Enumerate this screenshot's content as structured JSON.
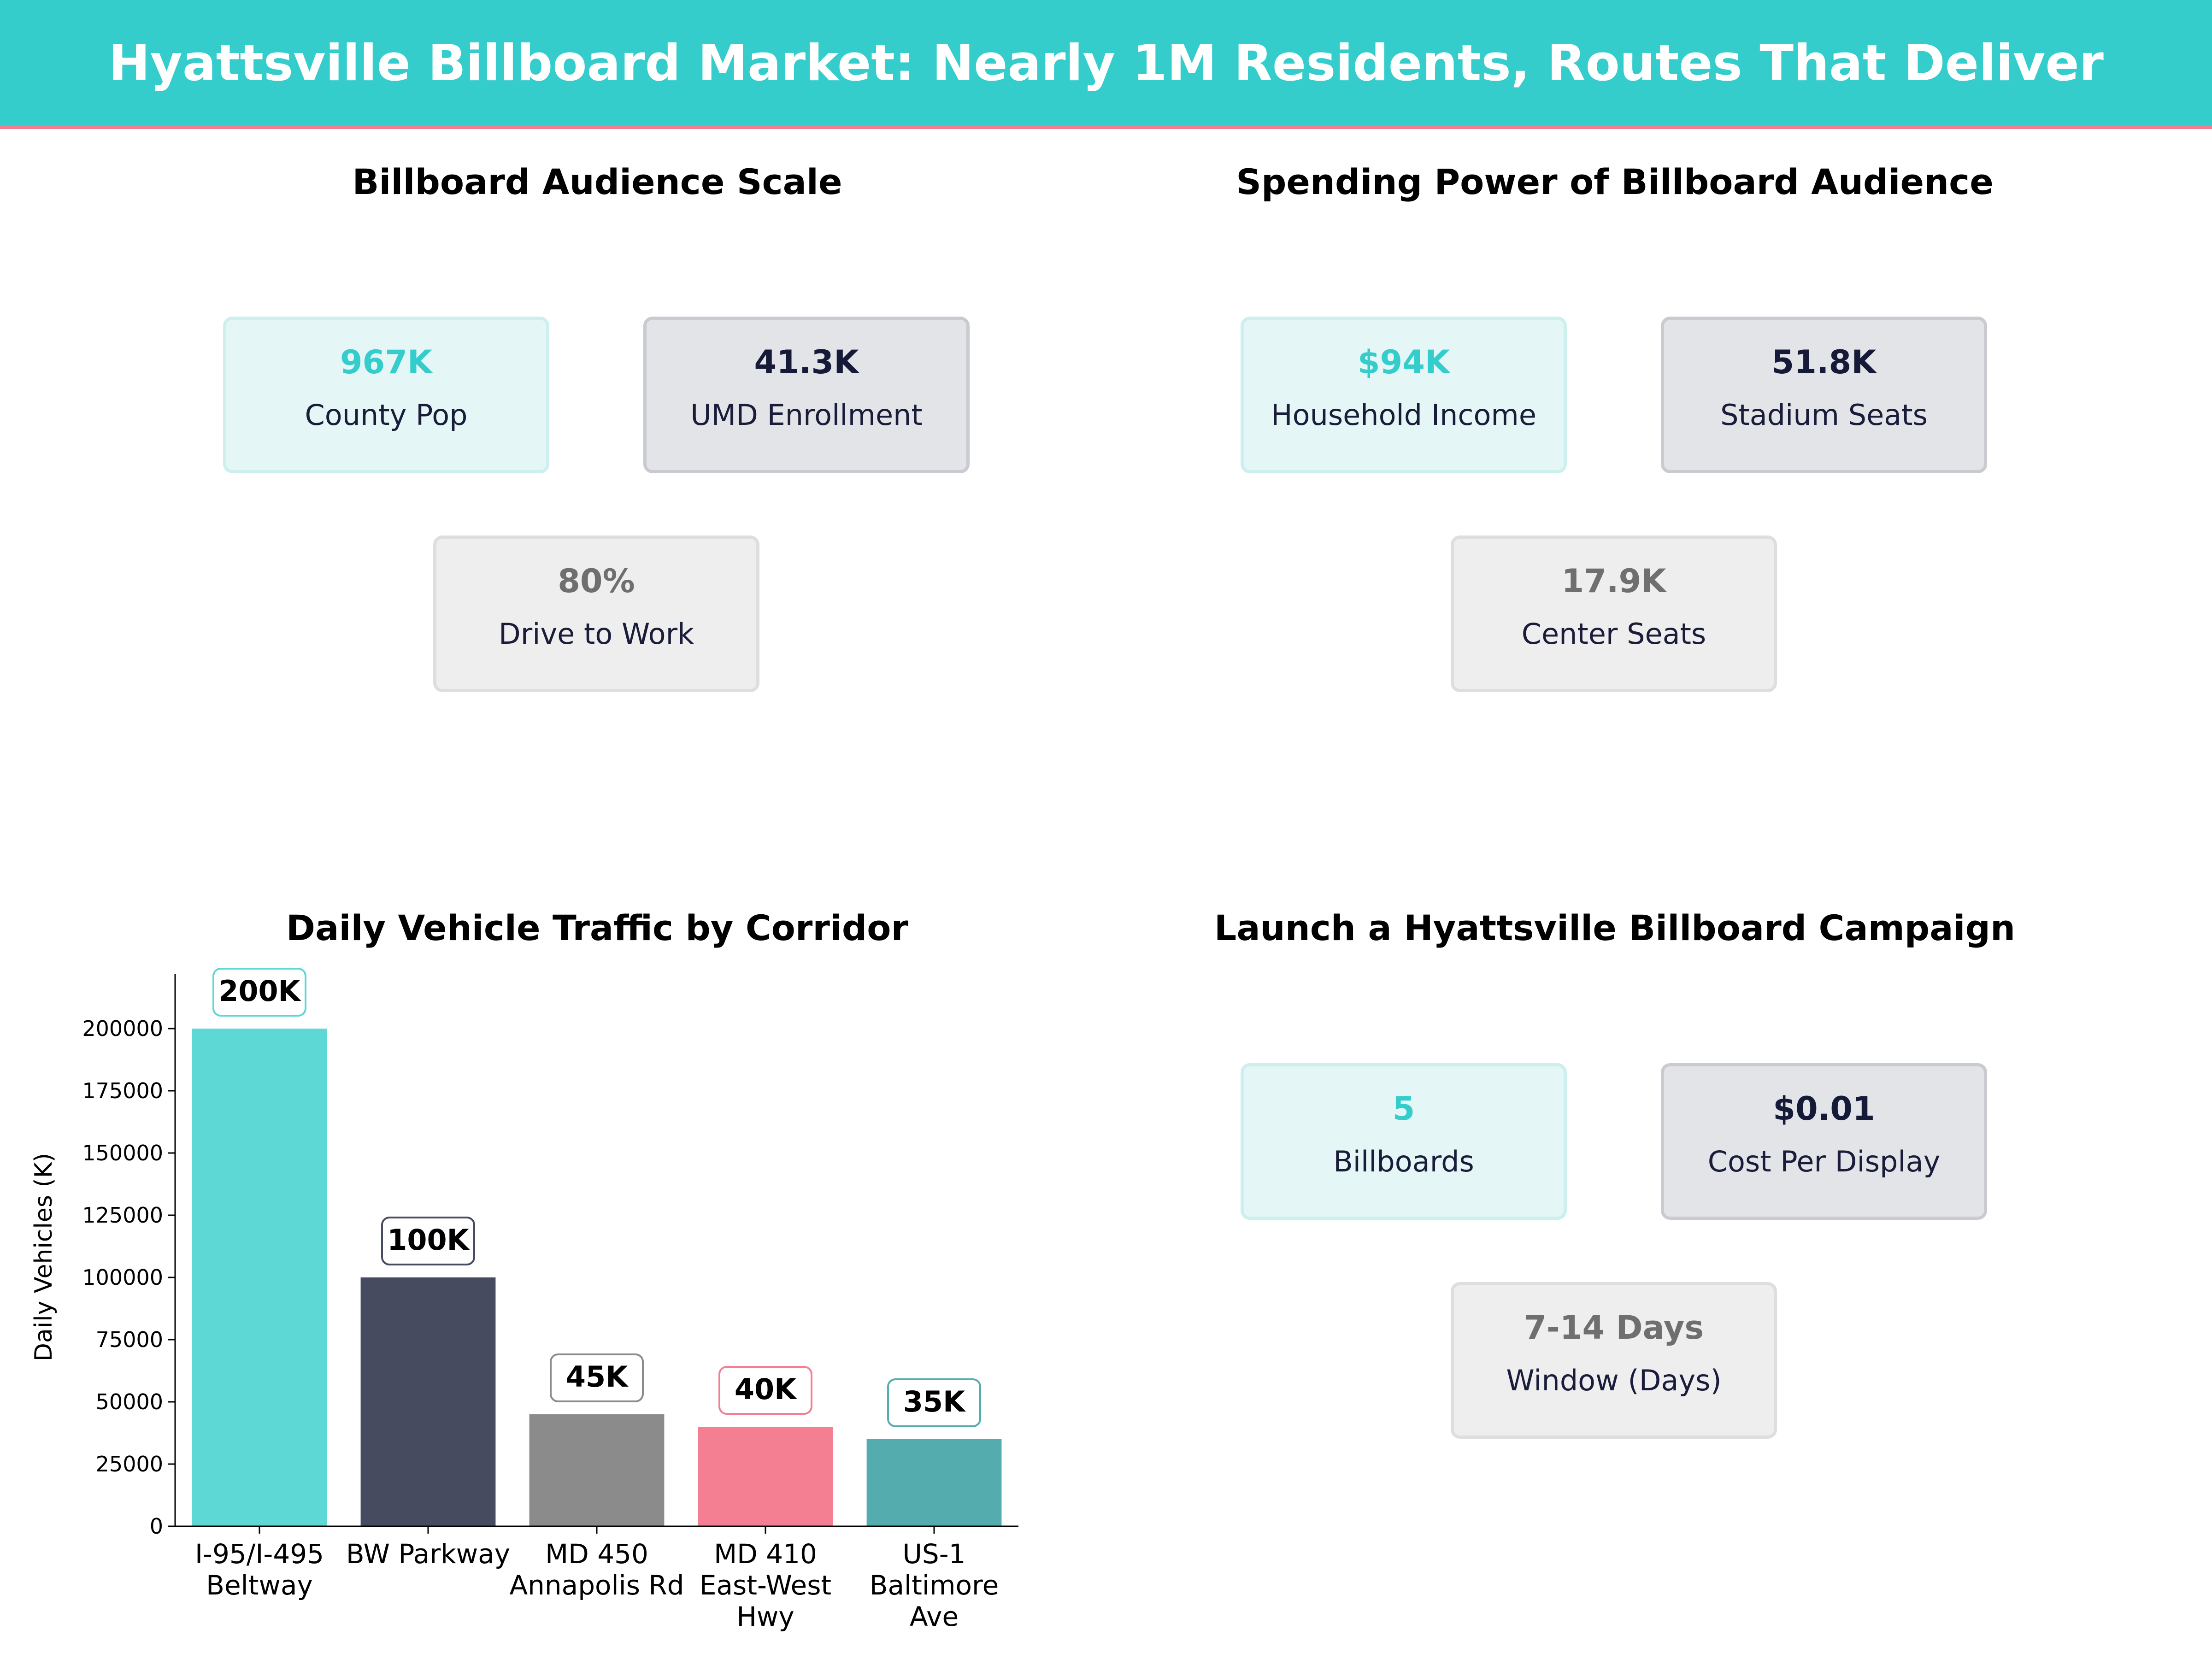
{
  "banner": {
    "title": "Hyattsville Billboard Market: Nearly 1M Residents, Routes That Deliver",
    "color": "#35cccc",
    "accent_line_color": "#f07e90"
  },
  "panels": {
    "audience": {
      "title": "Billboard Audience Scale",
      "cards": [
        {
          "value": "967K",
          "label": "County Pop",
          "style": "teal"
        },
        {
          "value": "41.3K",
          "label": "UMD Enrollment",
          "style": "navy"
        },
        {
          "value": "80%",
          "label": "Drive to Work",
          "style": "gray"
        }
      ]
    },
    "spending": {
      "title": "Spending Power of Billboard Audience",
      "cards": [
        {
          "value": "$94K",
          "label": "Household Income",
          "style": "teal"
        },
        {
          "value": "51.8K",
          "label": "Stadium Seats",
          "style": "navy"
        },
        {
          "value": "17.9K",
          "label": "Center Seats",
          "style": "gray"
        }
      ]
    },
    "traffic": {
      "title": "Daily Vehicle Traffic by Corridor"
    },
    "campaign": {
      "title": "Launch a Hyattsville Billboard Campaign",
      "cards": [
        {
          "value": "5",
          "label": "Billboards",
          "style": "teal"
        },
        {
          "value": "$0.01",
          "label": "Cost Per Display",
          "style": "navy"
        },
        {
          "value": "7-14 Days",
          "label": "Window (Days)",
          "style": "gray"
        }
      ]
    }
  },
  "card_colors": {
    "teal": "#35cccc",
    "navy": "#141a38",
    "gray": "#6f6f6f"
  },
  "chart_data": {
    "type": "bar",
    "title": "Daily Vehicle Traffic by Corridor",
    "xlabel": "",
    "ylabel": "Daily Vehicles (K)",
    "categories": [
      [
        "I-95/I-495",
        "Beltway"
      ],
      [
        "BW Parkway"
      ],
      [
        "MD 450",
        "Annapolis Rd"
      ],
      [
        "MD 410",
        "East-West",
        "Hwy"
      ],
      [
        "US-1",
        "Baltimore",
        "Ave"
      ]
    ],
    "values": [
      200000,
      100000,
      45000,
      40000,
      35000
    ],
    "data_labels": [
      "200K",
      "100K",
      "45K",
      "40K",
      "35K"
    ],
    "bar_colors": [
      "#5dd8d5",
      "#474b60",
      "#8b8b8b",
      "#f47f93",
      "#55acaf"
    ],
    "label_border_colors": [
      "#5dd8d5",
      "#474b60",
      "#8b8b8b",
      "#f47f93",
      "#55acaf"
    ],
    "yticks": [
      0,
      25000,
      50000,
      75000,
      100000,
      125000,
      150000,
      175000,
      200000
    ],
    "ylim": [
      0,
      220000
    ],
    "grid": false,
    "legend": "none"
  }
}
